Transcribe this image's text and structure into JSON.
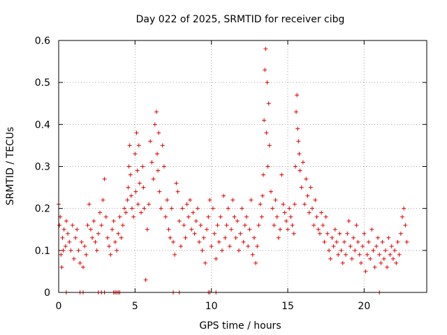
{
  "chart_data": {
    "type": "scatter",
    "title": "Day 022 of 2025, SRMTID for receiver cibg",
    "xlabel": "GPS time / hours",
    "ylabel": "SRMTID / TECUs",
    "xlim": [
      0,
      24.1
    ],
    "ylim": [
      0,
      0.6
    ],
    "x_ticks": [
      0,
      5,
      10,
      15,
      20
    ],
    "x_tick_labels": [
      "0",
      "5",
      "10",
      "15",
      "20"
    ],
    "y_ticks": [
      0,
      0.1,
      0.2,
      0.3,
      0.4,
      0.5,
      0.6
    ],
    "y_tick_labels": [
      "0",
      "0.1",
      "0.2",
      "0.3",
      "0.4",
      "0.5",
      "0.6"
    ],
    "grid": true,
    "marker": "plus",
    "color": "#e00000",
    "series": [
      {
        "name": "SRMTID",
        "x": [
          0.0,
          0.05,
          0.1,
          0.15,
          0.2,
          0.25,
          0.3,
          0.35,
          0.45,
          0.5,
          0.6,
          0.7,
          0.8,
          0.9,
          1.0,
          1.1,
          1.2,
          1.3,
          1.4,
          1.5,
          1.6,
          1.7,
          1.8,
          1.9,
          2.0,
          2.1,
          2.2,
          2.3,
          2.4,
          2.5,
          2.6,
          2.7,
          2.8,
          2.9,
          3.0,
          3.1,
          3.2,
          3.3,
          3.4,
          3.5,
          3.6,
          3.7,
          3.8,
          3.9,
          4.0,
          4.1,
          4.2,
          4.3,
          4.4,
          4.5,
          4.55,
          4.6,
          4.65,
          4.7,
          4.75,
          4.8,
          4.9,
          5.0,
          5.05,
          5.1,
          5.15,
          5.2,
          5.25,
          5.3,
          5.4,
          5.5,
          5.55,
          5.6,
          5.7,
          5.8,
          5.9,
          6.0,
          6.1,
          6.2,
          6.3,
          6.4,
          6.45,
          6.5,
          6.55,
          6.6,
          6.7,
          6.8,
          6.9,
          7.0,
          7.1,
          7.2,
          7.3,
          7.4,
          7.5,
          7.6,
          7.7,
          7.8,
          7.9,
          8.0,
          8.1,
          8.2,
          8.3,
          8.4,
          8.5,
          8.6,
          8.7,
          8.8,
          8.9,
          9.0,
          9.1,
          9.2,
          9.3,
          9.4,
          9.5,
          9.6,
          9.7,
          9.8,
          9.9,
          10.0,
          10.1,
          10.2,
          10.3,
          10.4,
          10.5,
          10.6,
          10.7,
          10.8,
          10.9,
          11.0,
          11.1,
          11.2,
          11.3,
          11.4,
          11.5,
          11.6,
          11.7,
          11.8,
          11.9,
          12.0,
          12.1,
          12.2,
          12.3,
          12.4,
          12.5,
          12.6,
          12.7,
          12.8,
          12.9,
          13.0,
          13.1,
          13.2,
          13.3,
          13.35,
          13.4,
          13.45,
          13.5,
          13.55,
          13.6,
          13.65,
          13.7,
          13.75,
          13.8,
          13.9,
          14.0,
          14.1,
          14.2,
          14.3,
          14.4,
          14.5,
          14.6,
          14.7,
          14.8,
          14.9,
          15.0,
          15.1,
          15.2,
          15.3,
          15.4,
          15.45,
          15.5,
          15.55,
          15.6,
          15.65,
          15.7,
          15.75,
          15.8,
          15.9,
          16.0,
          16.1,
          16.2,
          16.3,
          16.4,
          16.5,
          16.6,
          16.7,
          16.8,
          16.9,
          17.0,
          17.1,
          17.2,
          17.3,
          17.4,
          17.5,
          17.6,
          17.7,
          17.8,
          17.9,
          18.0,
          18.1,
          18.2,
          18.3,
          18.4,
          18.5,
          18.6,
          18.7,
          18.8,
          18.9,
          19.0,
          19.1,
          19.2,
          19.3,
          19.4,
          19.5,
          19.6,
          19.7,
          19.8,
          19.9,
          20.0,
          20.1,
          20.2,
          20.3,
          20.4,
          20.5,
          20.6,
          20.7,
          20.8,
          20.9,
          21.0,
          21.1,
          21.2,
          21.3,
          21.4,
          21.5,
          21.6,
          21.7,
          21.8,
          21.9,
          22.0,
          22.1,
          22.2,
          22.3,
          22.4,
          22.5,
          22.6,
          22.7,
          22.8,
          0.5,
          1.4,
          1.6,
          2.6,
          2.8,
          3.0,
          3.6,
          3.7,
          3.8,
          3.9,
          4.0,
          7.5,
          7.9,
          9.8,
          9.9,
          10.3,
          21.0
        ],
        "y": [
          0.21,
          0.16,
          0.18,
          0.09,
          0.06,
          0.13,
          0.1,
          0.15,
          0.11,
          0.17,
          0.14,
          0.12,
          0.1,
          0.16,
          0.08,
          0.13,
          0.15,
          0.1,
          0.07,
          0.12,
          0.06,
          0.11,
          0.09,
          0.16,
          0.21,
          0.15,
          0.13,
          0.17,
          0.12,
          0.1,
          0.14,
          0.19,
          0.16,
          0.22,
          0.27,
          0.18,
          0.13,
          0.11,
          0.09,
          0.15,
          0.17,
          0.12,
          0.1,
          0.14,
          0.18,
          0.13,
          0.16,
          0.2,
          0.19,
          0.22,
          0.25,
          0.3,
          0.35,
          0.28,
          0.23,
          0.2,
          0.18,
          0.33,
          0.24,
          0.38,
          0.29,
          0.21,
          0.35,
          0.26,
          0.19,
          0.3,
          0.25,
          0.2,
          0.03,
          0.15,
          0.21,
          0.36,
          0.31,
          0.27,
          0.4,
          0.43,
          0.33,
          0.29,
          0.38,
          0.24,
          0.2,
          0.35,
          0.3,
          0.18,
          0.22,
          0.15,
          0.13,
          0.2,
          0.12,
          0.09,
          0.26,
          0.24,
          0.17,
          0.11,
          0.2,
          0.16,
          0.13,
          0.21,
          0.18,
          0.22,
          0.15,
          0.19,
          0.14,
          0.17,
          0.2,
          0.12,
          0.16,
          0.1,
          0.13,
          0.07,
          0.15,
          0.18,
          0.22,
          0.11,
          0.2,
          0.14,
          0.08,
          0.16,
          0.12,
          0.18,
          0.1,
          0.23,
          0.13,
          0.16,
          0.2,
          0.11,
          0.15,
          0.22,
          0.18,
          0.13,
          0.17,
          0.1,
          0.14,
          0.2,
          0.12,
          0.16,
          0.18,
          0.11,
          0.15,
          0.22,
          0.09,
          0.13,
          0.07,
          0.11,
          0.16,
          0.21,
          0.18,
          0.23,
          0.28,
          0.41,
          0.53,
          0.58,
          0.38,
          0.5,
          0.3,
          0.45,
          0.35,
          0.24,
          0.2,
          0.16,
          0.22,
          0.18,
          0.13,
          0.15,
          0.28,
          0.21,
          0.19,
          0.17,
          0.15,
          0.2,
          0.18,
          0.16,
          0.14,
          0.21,
          0.3,
          0.43,
          0.47,
          0.39,
          0.36,
          0.33,
          0.29,
          0.25,
          0.31,
          0.21,
          0.27,
          0.23,
          0.19,
          0.25,
          0.2,
          0.16,
          0.22,
          0.18,
          0.15,
          0.14,
          0.19,
          0.16,
          0.12,
          0.18,
          0.14,
          0.1,
          0.08,
          0.13,
          0.11,
          0.15,
          0.12,
          0.09,
          0.14,
          0.1,
          0.07,
          0.12,
          0.09,
          0.14,
          0.17,
          0.11,
          0.08,
          0.13,
          0.1,
          0.16,
          0.12,
          0.09,
          0.07,
          0.11,
          0.14,
          0.05,
          0.09,
          0.12,
          0.08,
          0.15,
          0.1,
          0.06,
          0.11,
          0.13,
          0.09,
          0.07,
          0.12,
          0.08,
          0.1,
          0.06,
          0.13,
          0.09,
          0.11,
          0.08,
          0.1,
          0.07,
          0.12,
          0.09,
          0.14,
          0.18,
          0.2,
          0.16,
          0.12,
          0.0,
          0.0,
          0.0,
          0.0,
          0.0,
          0.0,
          0.0,
          0.0,
          0.0,
          0.0,
          0.0,
          0.0,
          0.0,
          0.0,
          0.0,
          0.0,
          0.0
        ]
      }
    ]
  }
}
